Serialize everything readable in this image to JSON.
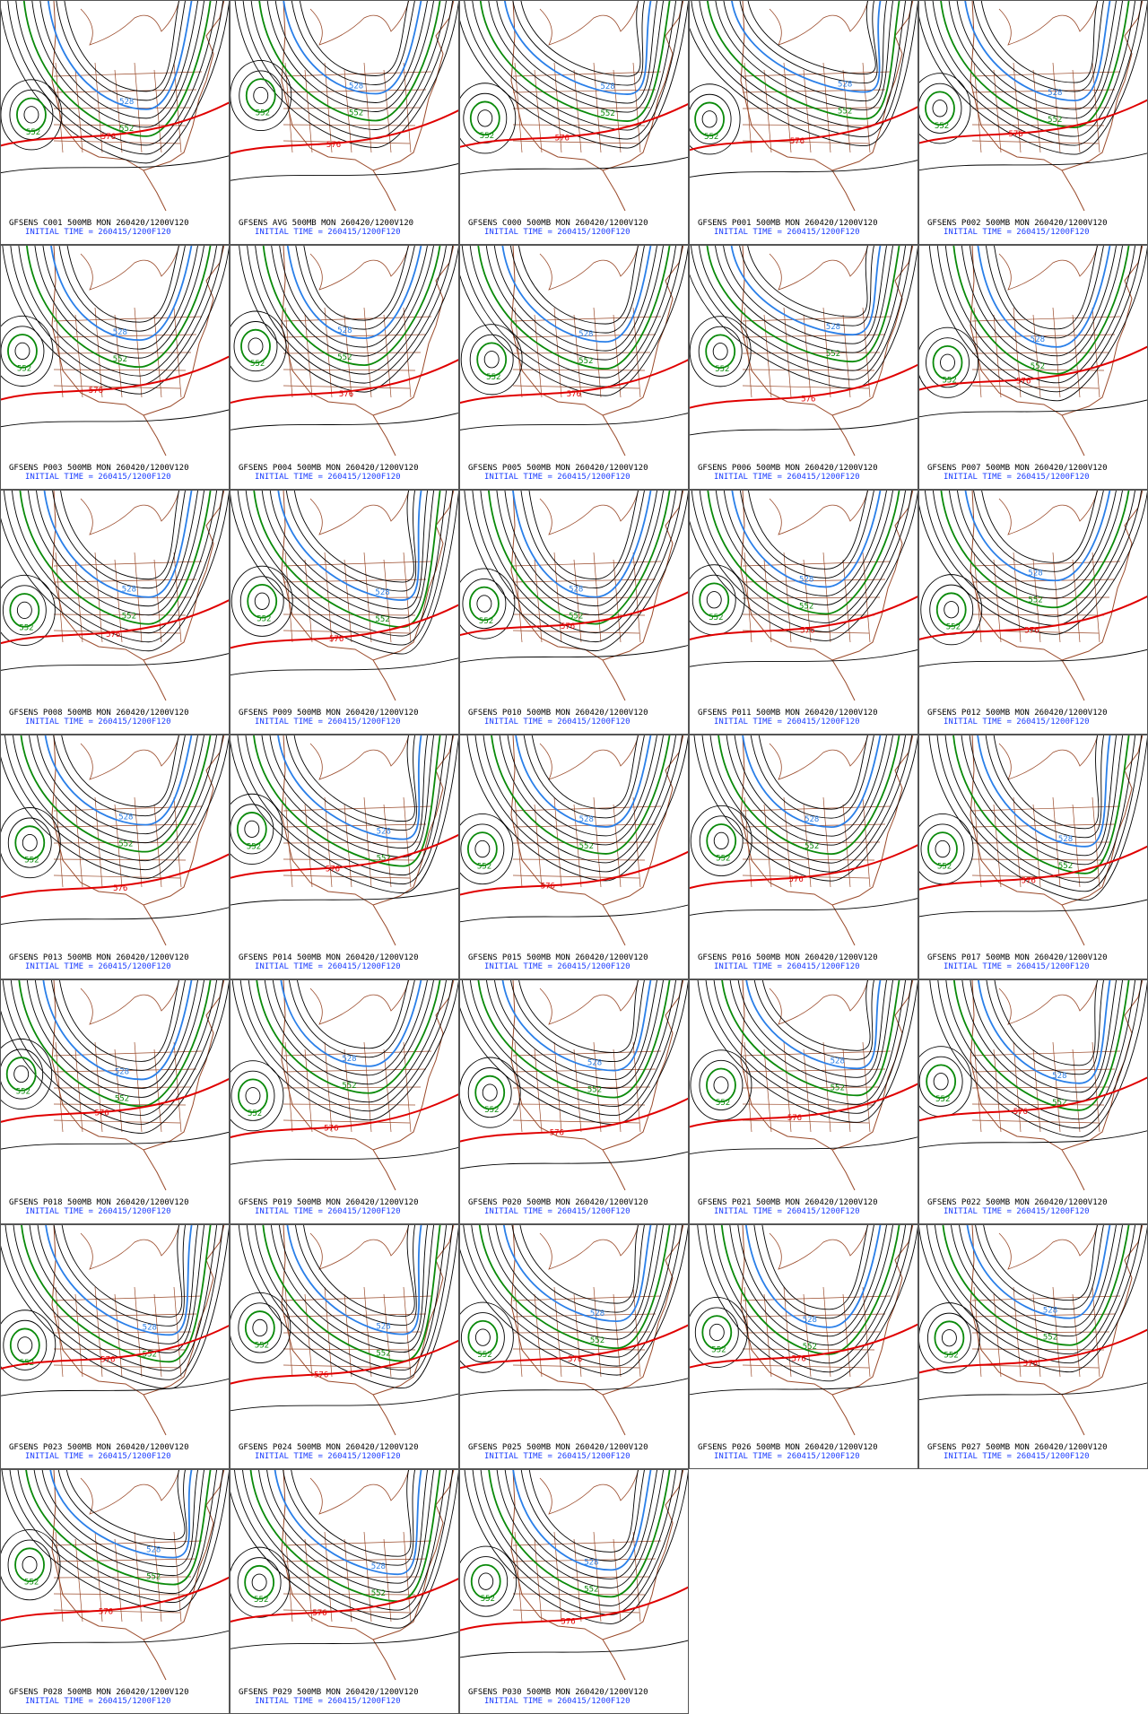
{
  "contours": [
    {
      "level": 528,
      "color": "#2a7fe8"
    },
    {
      "level": 552,
      "color": "#0a8a0a"
    },
    {
      "level": 576,
      "color": "#e00000"
    }
  ],
  "panels": [
    {
      "title": "GFSENS C001 500MB MON 260420/1200V120",
      "init": "INITIAL TIME = 260415/1200F120"
    },
    {
      "title": "GFSENS AVG 500MB MON 260420/1200V120",
      "init": "INITIAL TIME = 260415/1200F120"
    },
    {
      "title": "GFSENS C000 500MB MON 260420/1200V120",
      "init": "INITIAL TIME = 260415/1200F120"
    },
    {
      "title": "GFSENS P001 500MB MON 260420/1200V120",
      "init": "INITIAL TIME = 260415/1200F120"
    },
    {
      "title": "GFSENS P002 500MB MON 260420/1200V120",
      "init": "INITIAL TIME = 260415/1200F120"
    },
    {
      "title": "GFSENS P003 500MB MON 260420/1200V120",
      "init": "INITIAL TIME = 260415/1200F120"
    },
    {
      "title": "GFSENS P004 500MB MON 260420/1200V120",
      "init": "INITIAL TIME = 260415/1200F120"
    },
    {
      "title": "GFSENS P005 500MB MON 260420/1200V120",
      "init": "INITIAL TIME = 260415/1200F120"
    },
    {
      "title": "GFSENS P006 500MB MON 260420/1200V120",
      "init": "INITIAL TIME = 260415/1200F120"
    },
    {
      "title": "GFSENS P007 500MB MON 260420/1200V120",
      "init": "INITIAL TIME = 260415/1200F120"
    },
    {
      "title": "GFSENS P008 500MB MON 260420/1200V120",
      "init": "INITIAL TIME = 260415/1200F120"
    },
    {
      "title": "GFSENS P009 500MB MON 260420/1200V120",
      "init": "INITIAL TIME = 260415/1200F120"
    },
    {
      "title": "GFSENS P010 500MB MON 260420/1200V120",
      "init": "INITIAL TIME = 260415/1200F120"
    },
    {
      "title": "GFSENS P011 500MB MON 260420/1200V120",
      "init": "INITIAL TIME = 260415/1200F120"
    },
    {
      "title": "GFSENS P012 500MB MON 260420/1200V120",
      "init": "INITIAL TIME = 260415/1200F120"
    },
    {
      "title": "GFSENS P013 500MB MON 260420/1200V120",
      "init": "INITIAL TIME = 260415/1200F120"
    },
    {
      "title": "GFSENS P014 500MB MON 260420/1200V120",
      "init": "INITIAL TIME = 260415/1200F120"
    },
    {
      "title": "GFSENS P015 500MB MON 260420/1200V120",
      "init": "INITIAL TIME = 260415/1200F120"
    },
    {
      "title": "GFSENS P016 500MB MON 260420/1200V120",
      "init": "INITIAL TIME = 260415/1200F120"
    },
    {
      "title": "GFSENS P017 500MB MON 260420/1200V120",
      "init": "INITIAL TIME = 260415/1200F120"
    },
    {
      "title": "GFSENS P018 500MB MON 260420/1200V120",
      "init": "INITIAL TIME = 260415/1200F120"
    },
    {
      "title": "GFSENS P019 500MB MON 260420/1200V120",
      "init": "INITIAL TIME = 260415/1200F120"
    },
    {
      "title": "GFSENS P020 500MB MON 260420/1200V120",
      "init": "INITIAL TIME = 260415/1200F120"
    },
    {
      "title": "GFSENS P021 500MB MON 260420/1200V120",
      "init": "INITIAL TIME = 260415/1200F120"
    },
    {
      "title": "GFSENS P022 500MB MON 260420/1200V120",
      "init": "INITIAL TIME = 260415/1200F120"
    },
    {
      "title": "GFSENS P023 500MB MON 260420/1200V120",
      "init": "INITIAL TIME = 260415/1200F120"
    },
    {
      "title": "GFSENS P024 500MB MON 260420/1200V120",
      "init": "INITIAL TIME = 260415/1200F120"
    },
    {
      "title": "GFSENS P025 500MB MON 260420/1200V120",
      "init": "INITIAL TIME = 260415/1200F120"
    },
    {
      "title": "GFSENS P026 500MB MON 260420/1200V120",
      "init": "INITIAL TIME = 260415/1200F120"
    },
    {
      "title": "GFSENS P027 500MB MON 260420/1200V120",
      "init": "INITIAL TIME = 260415/1200F120"
    },
    {
      "title": "GFSENS P028 500MB MON 260420/1200V120",
      "init": "INITIAL TIME = 260415/1200F120"
    },
    {
      "title": "GFSENS P029 500MB MON 260420/1200V120",
      "init": "INITIAL TIME = 260415/1200F120"
    },
    {
      "title": "GFSENS P030 500MB MON 260420/1200V120",
      "init": "INITIAL TIME = 260415/1200F120"
    }
  ]
}
